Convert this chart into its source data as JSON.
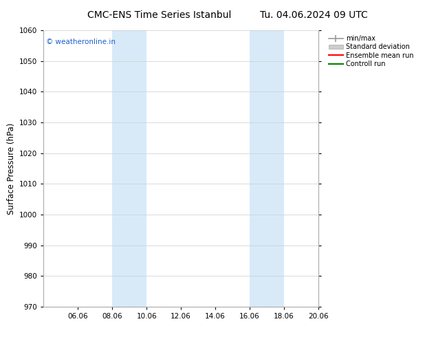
{
  "title_left": "CMC-ENS Time Series Istanbul",
  "title_right": "Tu. 04.06.2024 09 UTC",
  "ylabel": "Surface Pressure (hPa)",
  "ylim": [
    970,
    1060
  ],
  "yticks": [
    970,
    980,
    990,
    1000,
    1010,
    1020,
    1030,
    1040,
    1050,
    1060
  ],
  "xlim": [
    0,
    16
  ],
  "xtick_labels": [
    "06.06",
    "08.06",
    "10.06",
    "12.06",
    "14.06",
    "16.06",
    "18.06",
    "20.06"
  ],
  "xtick_positions": [
    2,
    4,
    6,
    8,
    10,
    12,
    14,
    16
  ],
  "shade_bands": [
    {
      "x_start": 4,
      "x_end": 6
    },
    {
      "x_start": 12,
      "x_end": 14
    }
  ],
  "shade_color": "#d8eaf8",
  "watermark_text": "© weatheronline.in",
  "watermark_color": "#1a5fcc",
  "background_color": "#ffffff",
  "grid_color": "#cccccc",
  "title_fontsize": 10,
  "tick_fontsize": 7.5,
  "ylabel_fontsize": 8.5,
  "legend_labels": [
    "min/max",
    "Standard deviation",
    "Ensemble mean run",
    "Controll run"
  ],
  "legend_colors": [
    "#999999",
    "#cccccc",
    "#ff0000",
    "#008000"
  ]
}
